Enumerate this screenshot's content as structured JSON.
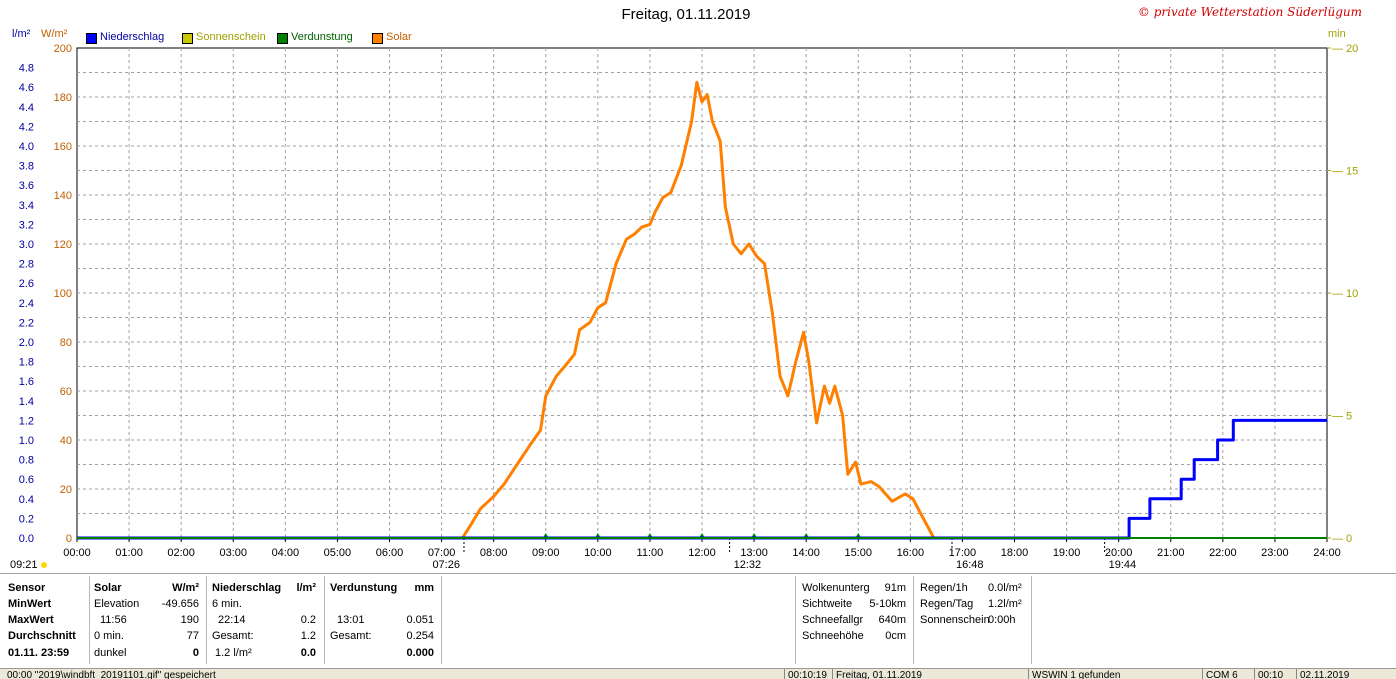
{
  "title": "Freitag, 01.11.2019",
  "copyright": "© private Wetterstation Süderlügum",
  "legend": [
    {
      "label": "Niederschlag",
      "color": "#0000ff",
      "icon": "blue-square"
    },
    {
      "label": "Sonnenschein",
      "color": "#c8c800",
      "icon": "yellow-square"
    },
    {
      "label": "Verdunstung",
      "color": "#008000",
      "icon": "green-square"
    },
    {
      "label": "Solar",
      "color": "#ff8000",
      "icon": "orange-square"
    }
  ],
  "axis_units": {
    "left1": "l/m²",
    "left2": "W/m²",
    "right": "min"
  },
  "colors": {
    "rain": "#0000ff",
    "solar": "#ff8000",
    "grid": "#a0a0a0",
    "rainAxis": "#0000a0",
    "solarAxis": "#c06000",
    "sunAxis": "#a0a000"
  },
  "chart_data": {
    "type": "line",
    "title": "Freitag, 01.11.2019",
    "xlim": [
      0,
      24
    ],
    "x_ticks": [
      "00:00",
      "01:00",
      "02:00",
      "03:00",
      "04:00",
      "05:00",
      "06:00",
      "07:00",
      "08:00",
      "09:00",
      "10:00",
      "11:00",
      "12:00",
      "13:00",
      "14:00",
      "15:00",
      "16:00",
      "17:00",
      "18:00",
      "19:00",
      "20:00",
      "21:00",
      "22:00",
      "23:00",
      "24:00"
    ],
    "y_left_solar": {
      "label": "W/m²",
      "lim": [
        0,
        200
      ],
      "ticks": [
        0,
        20,
        40,
        60,
        80,
        100,
        120,
        140,
        160,
        180,
        200
      ]
    },
    "y_left_rain": {
      "label": "l/m²",
      "lim": [
        0,
        5
      ],
      "ticks": [
        "0.0",
        "0.2",
        "0.4",
        "0.6",
        "0.8",
        "1.0",
        "1.2",
        "1.4",
        "1.6",
        "1.8",
        "2.0",
        "2.2",
        "2.4",
        "2.6",
        "2.8",
        "3.0",
        "3.2",
        "3.4",
        "3.6",
        "3.8",
        "4.0",
        "4.2",
        "4.4",
        "4.6",
        "4.8"
      ]
    },
    "y_right_sun": {
      "label": "min",
      "lim": [
        0,
        20
      ],
      "ticks": [
        0,
        5,
        10,
        15,
        20
      ]
    },
    "markers": [
      {
        "label": "09:21",
        "pos": "left-edge"
      },
      {
        "label": "07:26",
        "hour": 7.43
      },
      {
        "label": "12:32",
        "hour": 12.53
      },
      {
        "label": "16:48",
        "hour": 16.8
      },
      {
        "label": "19:44",
        "hour": 19.73
      }
    ],
    "series": [
      {
        "name": "Solar",
        "axis": "solar",
        "points": [
          [
            7.4,
            0
          ],
          [
            7.55,
            5
          ],
          [
            7.75,
            12
          ],
          [
            8.0,
            17
          ],
          [
            8.2,
            22
          ],
          [
            8.45,
            30
          ],
          [
            8.7,
            38
          ],
          [
            8.9,
            44
          ],
          [
            9.0,
            58
          ],
          [
            9.2,
            66
          ],
          [
            9.4,
            71
          ],
          [
            9.55,
            75
          ],
          [
            9.65,
            85
          ],
          [
            9.85,
            88
          ],
          [
            10.0,
            94
          ],
          [
            10.15,
            96
          ],
          [
            10.35,
            112
          ],
          [
            10.55,
            122
          ],
          [
            10.7,
            124
          ],
          [
            10.85,
            127
          ],
          [
            11.0,
            128
          ],
          [
            11.1,
            133
          ],
          [
            11.25,
            139
          ],
          [
            11.4,
            141
          ],
          [
            11.6,
            152
          ],
          [
            11.8,
            170
          ],
          [
            11.9,
            186
          ],
          [
            12.0,
            178
          ],
          [
            12.1,
            181
          ],
          [
            12.2,
            170
          ],
          [
            12.35,
            162
          ],
          [
            12.45,
            135
          ],
          [
            12.6,
            120
          ],
          [
            12.75,
            116
          ],
          [
            12.9,
            120
          ],
          [
            13.05,
            115
          ],
          [
            13.2,
            112
          ],
          [
            13.35,
            92
          ],
          [
            13.5,
            66
          ],
          [
            13.65,
            58
          ],
          [
            13.8,
            72
          ],
          [
            13.95,
            84
          ],
          [
            14.05,
            72
          ],
          [
            14.2,
            47
          ],
          [
            14.35,
            62
          ],
          [
            14.45,
            55
          ],
          [
            14.55,
            62
          ],
          [
            14.7,
            50
          ],
          [
            14.8,
            26
          ],
          [
            14.95,
            31
          ],
          [
            15.05,
            22
          ],
          [
            15.25,
            23
          ],
          [
            15.4,
            21
          ],
          [
            15.65,
            15
          ],
          [
            15.9,
            18
          ],
          [
            16.05,
            16
          ],
          [
            16.2,
            10
          ],
          [
            16.35,
            4
          ],
          [
            16.45,
            0
          ]
        ]
      },
      {
        "name": "Niederschlag",
        "axis": "rain",
        "points": [
          [
            0,
            0
          ],
          [
            20.2,
            0
          ],
          [
            20.2,
            0.2
          ],
          [
            20.6,
            0.2
          ],
          [
            20.6,
            0.4
          ],
          [
            21.2,
            0.4
          ],
          [
            21.2,
            0.6
          ],
          [
            21.45,
            0.6
          ],
          [
            21.45,
            0.8
          ],
          [
            21.9,
            0.8
          ],
          [
            21.9,
            1.0
          ],
          [
            22.2,
            1.0
          ],
          [
            22.2,
            1.2
          ],
          [
            24,
            1.2
          ]
        ]
      },
      {
        "name": "Verdunstung",
        "axis": "rain",
        "points": [
          [
            0,
            0
          ],
          [
            24,
            0
          ]
        ]
      }
    ]
  },
  "stats": {
    "col_sensor": {
      "header": "Sensor",
      "rows": [
        "MinWert",
        "MaxWert",
        "Durchschnitt",
        "01.11.  23:59"
      ]
    },
    "col_solar": {
      "header": "Solar",
      "unit": "W/m²",
      "rows": [
        [
          "Elevation",
          "-49.656"
        ],
        [
          "11:56",
          "190"
        ],
        [
          "0 min.",
          "77"
        ],
        [
          "dunkel",
          "0"
        ]
      ]
    },
    "col_rain": {
      "header": "Niederschlag",
      "unit": "l/m²",
      "rows": [
        [
          "6 min.",
          ""
        ],
        [
          "22:14",
          "0.2"
        ],
        [
          "Gesamt:",
          "1.2"
        ],
        [
          "1.2 l/m²",
          "0.0"
        ]
      ]
    },
    "col_evap": {
      "header": "Verdunstung",
      "unit": "mm",
      "rows": [
        [
          "",
          ""
        ],
        [
          "13:01",
          "0.051"
        ],
        [
          "Gesamt:",
          "0.254"
        ],
        [
          "",
          "0.000"
        ]
      ]
    },
    "cloud": [
      [
        "Wolkenunterg",
        "91m"
      ],
      [
        "Sichtweite",
        "5-10km"
      ],
      [
        "Schneefallgr",
        "640m"
      ],
      [
        "Schneehöhe",
        "0cm"
      ]
    ],
    "rain_info": [
      [
        "Regen/1h",
        "0.0l/m²"
      ],
      [
        "Regen/Tag",
        "1.2l/m²"
      ],
      [
        "Sonnenschein",
        "0:00h"
      ]
    ]
  },
  "statusbar": [
    {
      "text": "00:00   \"2019\\windbft_20191101.gif\" gespeichert"
    },
    {
      "text": "00:10:19"
    },
    {
      "text": "Freitag, 01.11.2019"
    },
    {
      "text": "WSWIN 1 gefunden"
    },
    {
      "text": "COM 6"
    },
    {
      "text": "00:10"
    },
    {
      "text": "02.11.2019"
    }
  ]
}
